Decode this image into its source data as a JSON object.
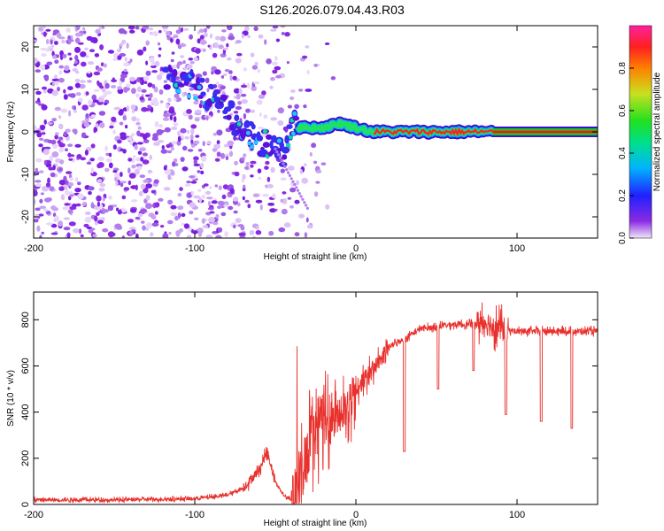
{
  "title": "S126.2026.079.04.43.R03",
  "chart_data": [
    {
      "type": "heatmap",
      "name": "spectrogram",
      "xlabel": "Height of straight line (km)",
      "ylabel": "Frequency (Hz)",
      "xlim": [
        -200,
        150
      ],
      "ylim": [
        -25,
        25
      ],
      "xticks": [
        -200,
        -100,
        0,
        100
      ],
      "yticks": [
        -20,
        -10,
        0,
        10,
        20
      ],
      "ridge": {
        "x": [
          -120,
          -110,
          -100,
          -90,
          -80,
          -70,
          -60,
          -50,
          -45,
          -40,
          -35,
          -30,
          -20,
          -10,
          0,
          10,
          20,
          40,
          60,
          80,
          90,
          150
        ],
        "y": [
          14,
          12,
          11,
          8,
          5,
          0,
          -2,
          -4,
          -5,
          2,
          1,
          1,
          1,
          2,
          1,
          0,
          0,
          0,
          0,
          0,
          0,
          0
        ]
      },
      "colorbar": {
        "label": "Normalized spectral amplitude",
        "min": 0.0,
        "max": 1.0,
        "ticks": [
          "0.0",
          "0.2",
          "0.4",
          "0.6",
          "0.8"
        ],
        "tick_values": [
          0.0,
          0.2,
          0.4,
          0.6,
          0.8
        ]
      }
    },
    {
      "type": "line",
      "name": "snr",
      "xlabel": "Height of straight line (km)",
      "ylabel": "SNR (10 * v/v)",
      "xlim": [
        -200,
        150
      ],
      "ylim": [
        0,
        920
      ],
      "xticks": [
        -200,
        -100,
        0,
        100
      ],
      "yticks": [
        0,
        200,
        400,
        600,
        800
      ],
      "color": "#e8302c",
      "baseline": {
        "x": [
          -200,
          -150,
          -100,
          -80,
          -70,
          -60,
          -55,
          -50,
          -45,
          -40,
          -35,
          -30,
          -25,
          -20,
          -15,
          -10,
          -5,
          0,
          5,
          10,
          15,
          20,
          25,
          30,
          40,
          50,
          60,
          70,
          80,
          90,
          100,
          120,
          150
        ],
        "y": [
          20,
          20,
          25,
          40,
          70,
          150,
          230,
          100,
          40,
          20,
          80,
          250,
          320,
          380,
          380,
          380,
          430,
          490,
          540,
          580,
          630,
          680,
          700,
          720,
          760,
          770,
          780,
          780,
          790,
          760,
          750,
          750,
          750
        ]
      },
      "dips": [
        {
          "x": 30,
          "y": 230
        },
        {
          "x": 51,
          "y": 500
        },
        {
          "x": 73,
          "y": 580
        },
        {
          "x": 93,
          "y": 390
        },
        {
          "x": 115,
          "y": 360
        },
        {
          "x": 134,
          "y": 330
        }
      ]
    }
  ]
}
